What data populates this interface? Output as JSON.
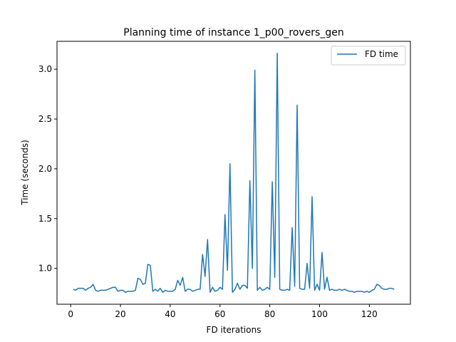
{
  "chart_data": {
    "type": "line",
    "title": "Planning time of instance 1_p00_rovers_gen",
    "xlabel": "FD iterations",
    "ylabel": "Time (seconds)",
    "xlim": [
      -5.5,
      136.5
    ],
    "ylim": [
      0.64,
      3.28
    ],
    "xticks": [
      0,
      20,
      40,
      60,
      80,
      100,
      120
    ],
    "yticks": [
      1.0,
      1.5,
      2.0,
      2.5,
      3.0
    ],
    "ytick_labels": [
      "1.0",
      "1.5",
      "2.0",
      "2.5",
      "3.0"
    ],
    "legend_position": "top-right",
    "grid": false,
    "series": [
      {
        "name": "FD time",
        "color": "#1f77b4",
        "x": [
          1,
          2,
          3,
          4,
          5,
          6,
          7,
          8,
          9,
          10,
          11,
          12,
          13,
          14,
          15,
          16,
          17,
          18,
          19,
          20,
          21,
          22,
          23,
          24,
          25,
          26,
          27,
          28,
          29,
          30,
          31,
          32,
          33,
          34,
          35,
          36,
          37,
          38,
          39,
          40,
          41,
          42,
          43,
          44,
          45,
          46,
          47,
          48,
          49,
          50,
          51,
          52,
          53,
          54,
          55,
          56,
          57,
          58,
          59,
          60,
          61,
          62,
          63,
          64,
          65,
          66,
          67,
          68,
          69,
          70,
          71,
          72,
          73,
          74,
          75,
          76,
          77,
          78,
          79,
          80,
          81,
          82,
          83,
          84,
          85,
          86,
          87,
          88,
          89,
          90,
          91,
          92,
          93,
          94,
          95,
          96,
          97,
          98,
          99,
          100,
          101,
          102,
          103,
          104,
          105,
          106,
          107,
          108,
          109,
          110,
          111,
          112,
          113,
          114,
          115,
          116,
          117,
          118,
          119,
          120,
          121,
          122,
          123,
          124,
          125,
          126,
          127,
          128,
          129,
          130
        ],
        "values": [
          0.79,
          0.78,
          0.8,
          0.8,
          0.8,
          0.78,
          0.8,
          0.81,
          0.84,
          0.78,
          0.77,
          0.78,
          0.78,
          0.78,
          0.79,
          0.8,
          0.81,
          0.81,
          0.77,
          0.78,
          0.78,
          0.76,
          0.77,
          0.77,
          0.77,
          0.78,
          0.9,
          0.89,
          0.84,
          0.85,
          1.04,
          1.03,
          0.77,
          0.79,
          0.77,
          0.8,
          0.76,
          0.78,
          0.77,
          0.77,
          0.77,
          0.79,
          0.88,
          0.83,
          0.91,
          0.77,
          0.79,
          0.79,
          0.77,
          0.78,
          0.79,
          0.79,
          1.14,
          0.92,
          1.29,
          0.76,
          0.81,
          0.77,
          0.78,
          0.81,
          0.79,
          1.54,
          0.98,
          2.05,
          0.76,
          0.79,
          0.85,
          0.79,
          0.83,
          0.83,
          0.8,
          1.88,
          1.0,
          2.99,
          0.78,
          0.81,
          0.78,
          0.79,
          0.81,
          0.79,
          1.87,
          0.91,
          3.16,
          0.79,
          0.78,
          0.78,
          0.79,
          0.78,
          1.41,
          0.82,
          2.64,
          0.8,
          0.79,
          0.79,
          1.05,
          0.8,
          1.72,
          0.78,
          0.84,
          0.78,
          1.16,
          0.79,
          0.91,
          0.78,
          0.79,
          0.78,
          0.78,
          0.79,
          0.78,
          0.79,
          0.78,
          0.77,
          0.77,
          0.76,
          0.77,
          0.77,
          0.77,
          0.76,
          0.77,
          0.76,
          0.78,
          0.79,
          0.84,
          0.83,
          0.8,
          0.79,
          0.79,
          0.8,
          0.8,
          0.79
        ]
      }
    ]
  }
}
